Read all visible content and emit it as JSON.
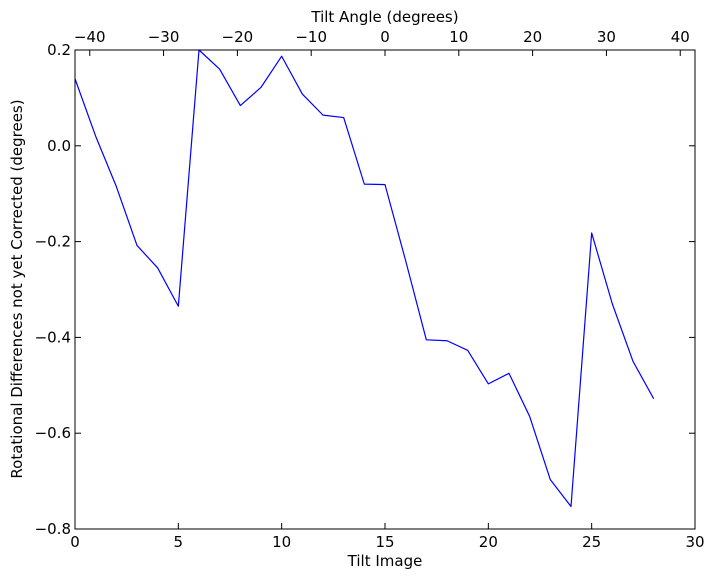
{
  "chart_data": {
    "type": "line",
    "xlabel": "Tilt Image",
    "ylabel": "Rotational Differences not yet Corrected (degrees)",
    "top_xlabel": "Tilt Angle (degrees)",
    "xlim": [
      0,
      30
    ],
    "ylim": [
      -0.8,
      0.2
    ],
    "top_xlim": [
      -42,
      42
    ],
    "x_ticks": [
      0,
      5,
      10,
      15,
      20,
      25,
      30
    ],
    "x_tick_labels": [
      "0",
      "5",
      "10",
      "15",
      "20",
      "25",
      "30"
    ],
    "y_ticks": [
      0.2,
      0.0,
      -0.2,
      -0.4,
      -0.6,
      -0.8
    ],
    "y_tick_labels": [
      "0.2",
      "0.0",
      "−0.2",
      "−0.4",
      "−0.6",
      "−0.8"
    ],
    "top_x_ticks": [
      -40,
      -30,
      -20,
      -10,
      0,
      10,
      20,
      30,
      40
    ],
    "top_x_tick_labels": [
      "−40",
      "−30",
      "−20",
      "−10",
      "0",
      "10",
      "20",
      "30",
      "40"
    ],
    "grid": false,
    "series": [
      {
        "color": "#0000ff",
        "x": [
          0,
          1,
          2,
          3,
          4,
          5,
          6,
          7,
          8,
          9,
          10,
          11,
          12,
          13,
          14,
          15,
          16,
          17,
          18,
          19,
          20,
          21,
          22,
          23,
          24,
          25,
          26,
          27,
          28
        ],
        "y": [
          0.14,
          0.02,
          -0.085,
          -0.208,
          -0.255,
          -0.335,
          0.2,
          0.16,
          0.084,
          0.122,
          0.187,
          0.108,
          0.064,
          0.059,
          -0.08,
          -0.081,
          -0.24,
          -0.405,
          -0.407,
          -0.427,
          -0.497,
          -0.475,
          -0.565,
          -0.697,
          -0.753,
          -0.182,
          -0.33,
          -0.45,
          -0.528
        ]
      }
    ]
  }
}
